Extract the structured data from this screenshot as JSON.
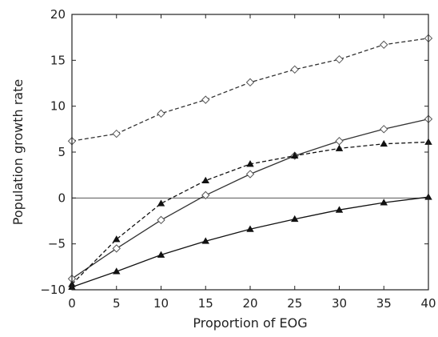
{
  "chart_data": {
    "type": "line",
    "title": "",
    "xlabel": "Proportion of EOG",
    "ylabel": "Population growth rate",
    "xlim": [
      0,
      40
    ],
    "ylim": [
      -10,
      20
    ],
    "x_ticks": [
      "0",
      "5",
      "10",
      "15",
      "20",
      "25",
      "30",
      "35",
      "40"
    ],
    "y_ticks": [
      "−10",
      "−5",
      "0",
      "5",
      "10",
      "15",
      "20"
    ],
    "grid": false,
    "legend": "none",
    "reference_line_y": 0,
    "x": [
      0,
      5,
      10,
      15,
      20,
      25,
      30,
      35,
      40
    ],
    "series": [
      {
        "marker": "diamond-open",
        "line": "dashed",
        "color": "#333333",
        "values": [
          6.2,
          7.0,
          9.2,
          10.7,
          12.6,
          14.0,
          15.1,
          16.7,
          17.4
        ]
      },
      {
        "marker": "diamond-open",
        "line": "solid",
        "color": "#333333",
        "values": [
          -8.8,
          -5.5,
          -2.4,
          0.3,
          2.6,
          4.6,
          6.2,
          7.5,
          8.6
        ]
      },
      {
        "marker": "triangle-filled",
        "line": "dashed",
        "color": "#111111",
        "values": [
          -9.4,
          -4.5,
          -0.6,
          1.9,
          3.7,
          4.6,
          5.4,
          5.9,
          6.1
        ]
      },
      {
        "marker": "triangle-filled",
        "line": "solid",
        "color": "#111111",
        "values": [
          -9.7,
          -8.0,
          -6.2,
          -4.7,
          -3.4,
          -2.3,
          -1.3,
          -0.5,
          0.1
        ]
      }
    ]
  }
}
